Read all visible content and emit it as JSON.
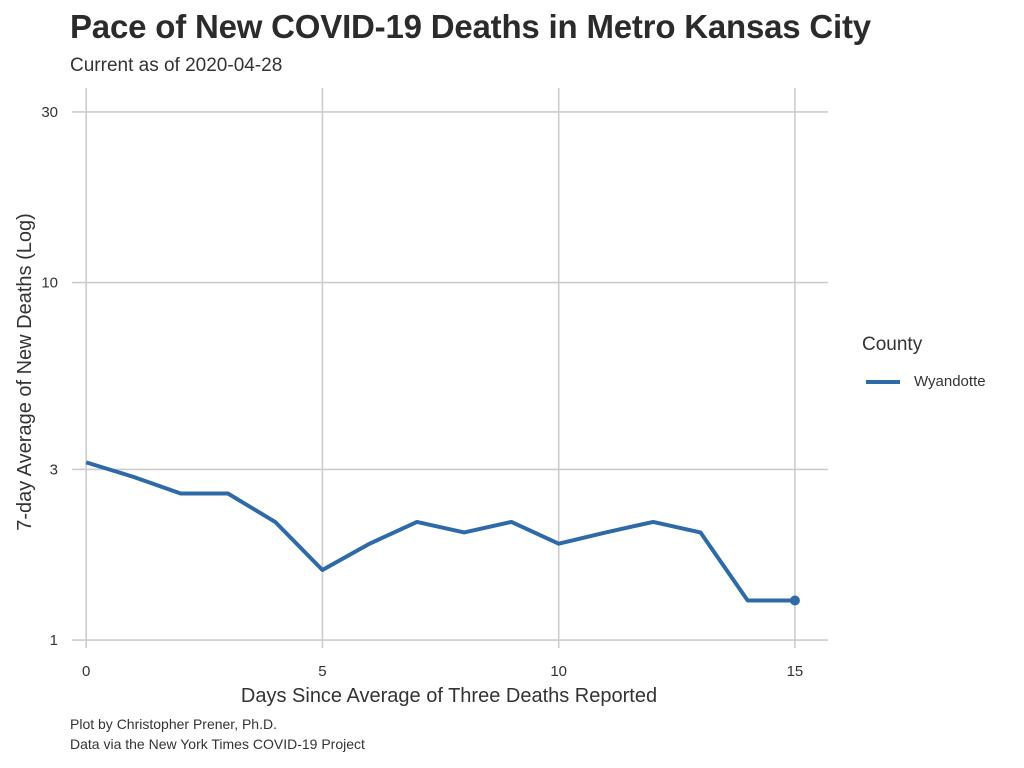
{
  "header": {
    "title": "Pace of New COVID-19 Deaths in Metro Kansas City",
    "subtitle": "Current as of 2020-04-28"
  },
  "caption": {
    "line1": "Plot by Christopher Prener, Ph.D.",
    "line2": "Data via the New York Times COVID-19 Project"
  },
  "legend": {
    "title": "County"
  },
  "colors": {
    "line": "#2e6aa8",
    "grid": "#cccccc"
  },
  "chart_data": {
    "type": "line",
    "title": "Pace of New COVID-19 Deaths in Metro Kansas City",
    "subtitle": "Current as of 2020-04-28",
    "xlabel": "Days Since Average of Three Deaths Reported",
    "ylabel": "7-day Average of New Deaths (Log)",
    "y_scale": "log",
    "xlim": [
      -0.3,
      15.7
    ],
    "ylim": [
      0.95,
      35
    ],
    "x_ticks": [
      0,
      5,
      10,
      15
    ],
    "y_ticks": [
      1,
      3,
      10,
      30
    ],
    "grid": true,
    "legend_position": "right",
    "series": [
      {
        "name": "Wyandotte",
        "color": "#2e6aa8",
        "x": [
          0,
          1,
          2,
          3,
          4,
          5,
          6,
          7,
          8,
          9,
          10,
          11,
          12,
          13,
          14,
          15
        ],
        "values": [
          3.14,
          2.86,
          2.57,
          2.57,
          2.14,
          1.57,
          1.86,
          2.14,
          2.0,
          2.14,
          1.86,
          2.0,
          2.14,
          2.0,
          1.29,
          1.29
        ]
      }
    ]
  }
}
